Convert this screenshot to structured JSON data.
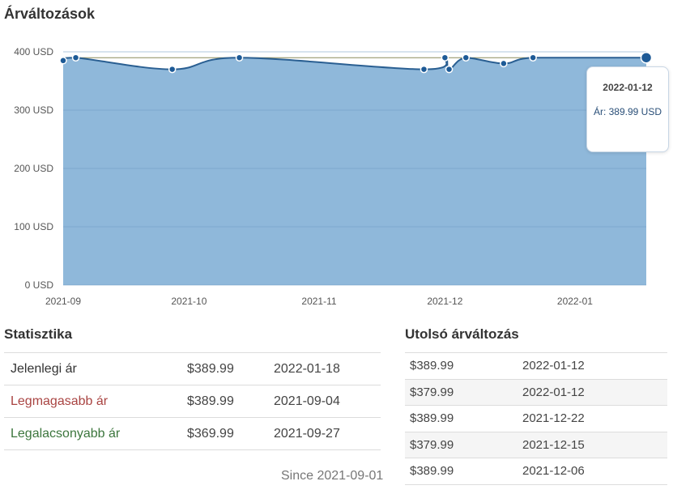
{
  "chart_section": {
    "title": "Árváltozások"
  },
  "chart_data": {
    "type": "area",
    "title": "Árváltozások",
    "y_unit": "USD",
    "ylim": [
      0,
      400
    ],
    "y_ticks": [
      0,
      100,
      200,
      300,
      400
    ],
    "y_tick_labels": [
      "0 USD",
      "100 USD",
      "200 USD",
      "300 USD",
      "400 USD"
    ],
    "x_tick_labels": [
      "2021-09",
      "2021-10",
      "2021-11",
      "2021-12",
      "2022-01"
    ],
    "x_tick_dates": [
      "2021-09-01",
      "2021-10-01",
      "2021-11-01",
      "2021-12-01",
      "2022-01-01"
    ],
    "xlim": [
      "2021-09-01",
      "2022-01-18"
    ],
    "reference_line": 389.99,
    "grid": true,
    "series": [
      {
        "points": [
          {
            "x": "2021-09-01",
            "y": 384.99
          },
          {
            "x": "2021-09-04",
            "y": 389.99
          },
          {
            "x": "2021-09-27",
            "y": 369.99
          },
          {
            "x": "2021-10-13",
            "y": 389.99
          },
          {
            "x": "2021-11-26",
            "y": 369.99
          },
          {
            "x": "2021-12-01",
            "y": 389.99
          },
          {
            "x": "2021-12-02",
            "y": 369.99
          },
          {
            "x": "2021-12-06",
            "y": 389.99
          },
          {
            "x": "2021-12-15",
            "y": 379.99
          },
          {
            "x": "2021-12-22",
            "y": 389.99
          },
          {
            "x": "2022-01-12",
            "y": 389.99
          }
        ]
      }
    ],
    "highlighted_point": {
      "x": "2022-01-12",
      "y": 389.99
    },
    "colors": {
      "area": "#8fb8da",
      "line": "#2a5f92",
      "point": "#1d5a96",
      "reference": "#8c8c5a",
      "grid": "#6f9bc3"
    }
  },
  "tooltip": {
    "date": "2022-01-12",
    "line": "Ár: 389.99 USD"
  },
  "stats": {
    "title": "Statisztika",
    "rows": [
      {
        "label": "Jelenlegi ár",
        "price": "$389.99",
        "date": "2022-01-18",
        "kind": "current"
      },
      {
        "label": "Legmagasabb ár",
        "price": "$389.99",
        "date": "2021-09-04",
        "kind": "high"
      },
      {
        "label": "Legalacsonyabb ár",
        "price": "$369.99",
        "date": "2021-09-27",
        "kind": "low"
      }
    ],
    "since": "Since 2021-09-01"
  },
  "changes": {
    "title": "Utolsó árváltozás",
    "rows": [
      {
        "price": "$389.99",
        "date": "2022-01-12"
      },
      {
        "price": "$379.99",
        "date": "2022-01-12"
      },
      {
        "price": "$389.99",
        "date": "2021-12-22"
      },
      {
        "price": "$379.99",
        "date": "2021-12-15"
      },
      {
        "price": "$389.99",
        "date": "2021-12-06"
      }
    ]
  }
}
